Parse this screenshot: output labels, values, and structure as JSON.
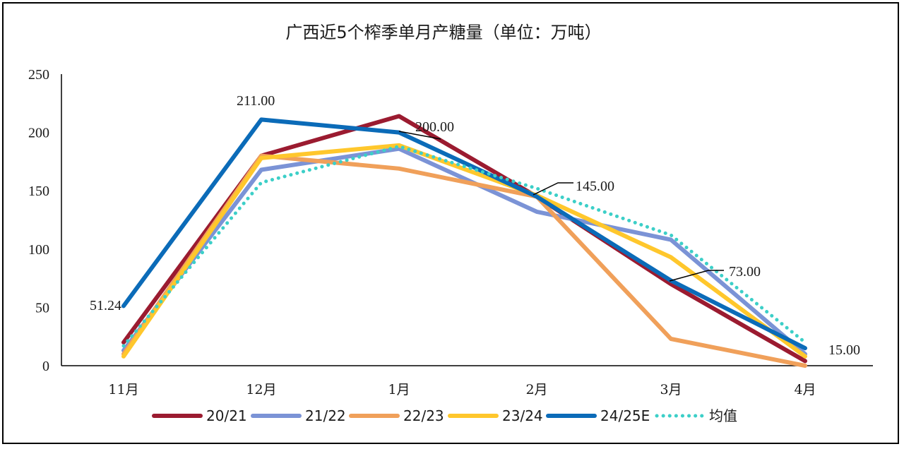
{
  "chart_data": {
    "type": "line",
    "title": "广西近5个榨季单月产糖量（单位：万吨）",
    "categories": [
      "11月",
      "12月",
      "1月",
      "2月",
      "3月",
      "4月"
    ],
    "ylim": [
      0,
      250
    ],
    "yticks": [
      0,
      50,
      100,
      150,
      200,
      250
    ],
    "xlabel": "",
    "ylabel": "",
    "grid": false,
    "legend_position": "bottom",
    "series": [
      {
        "name": "20/21",
        "color": "#9B1B30",
        "style": "solid",
        "values": [
          20,
          180,
          214,
          145,
          70,
          4
        ]
      },
      {
        "name": "21/22",
        "color": "#7B93D6",
        "style": "solid",
        "values": [
          13,
          168,
          186,
          132,
          108,
          10
        ]
      },
      {
        "name": "22/23",
        "color": "#F0A05A",
        "style": "solid",
        "values": [
          10,
          180,
          169,
          145,
          23,
          0
        ]
      },
      {
        "name": "23/24",
        "color": "#FFC72C",
        "style": "solid",
        "values": [
          8,
          178,
          189,
          146,
          93,
          8
        ]
      },
      {
        "name": "24/25E",
        "color": "#0B6BB8",
        "style": "solid",
        "values": [
          51.24,
          211,
          200,
          145,
          73,
          15
        ]
      },
      {
        "name": "均值",
        "color": "#3CCFC8",
        "style": "dotted",
        "values": [
          17,
          157,
          188,
          152,
          112,
          20
        ]
      }
    ],
    "data_labels": [
      {
        "text": "51.24",
        "series": "24/25E",
        "category": "11月"
      },
      {
        "text": "211.00",
        "series": "24/25E",
        "category": "12月"
      },
      {
        "text": "200.00",
        "series": "24/25E",
        "category": "1月"
      },
      {
        "text": "145.00",
        "series": "24/25E",
        "category": "2月"
      },
      {
        "text": "73.00",
        "series": "24/25E",
        "category": "3月"
      },
      {
        "text": "15.00",
        "series": "24/25E",
        "category": "4月"
      }
    ]
  }
}
